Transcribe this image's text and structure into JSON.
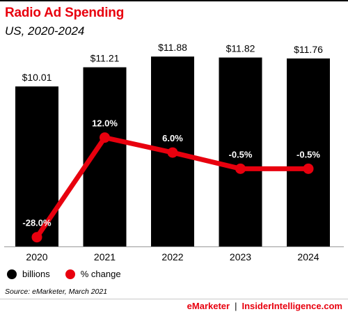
{
  "header": {
    "title": "Radio Ad Spending",
    "subtitle": "US, 2020-2024"
  },
  "colors": {
    "accent": "#e8000e",
    "bars": "#000000"
  },
  "chart_data": {
    "type": "bar",
    "categories": [
      "2020",
      "2021",
      "2022",
      "2023",
      "2024"
    ],
    "series": [
      {
        "name": "billions",
        "kind": "bar",
        "values": [
          10.01,
          11.21,
          11.88,
          11.82,
          11.76
        ],
        "labels": [
          "$10.01",
          "$11.21",
          "$11.88",
          "$11.82",
          "$11.76"
        ]
      },
      {
        "name": "% change",
        "kind": "line",
        "values": [
          -28.0,
          12.0,
          6.0,
          -0.5,
          -0.5
        ],
        "labels": [
          "-28.0%",
          "12.0%",
          "6.0%",
          "-0.5%",
          "-0.5%"
        ]
      }
    ],
    "ylim_bars": [
      0,
      12.5
    ],
    "ylim_line": [
      -32,
      20
    ],
    "grid": false,
    "legend": "bottom-left"
  },
  "legend": {
    "items": [
      {
        "label": "billions",
        "color": "#000000"
      },
      {
        "label": "% change",
        "color": "#e8000e"
      }
    ]
  },
  "source": "Source: eMarketer, March 2021",
  "footer": {
    "brand1": "eMarketer",
    "separator": "|",
    "brand2": "InsiderIntelligence.com"
  }
}
